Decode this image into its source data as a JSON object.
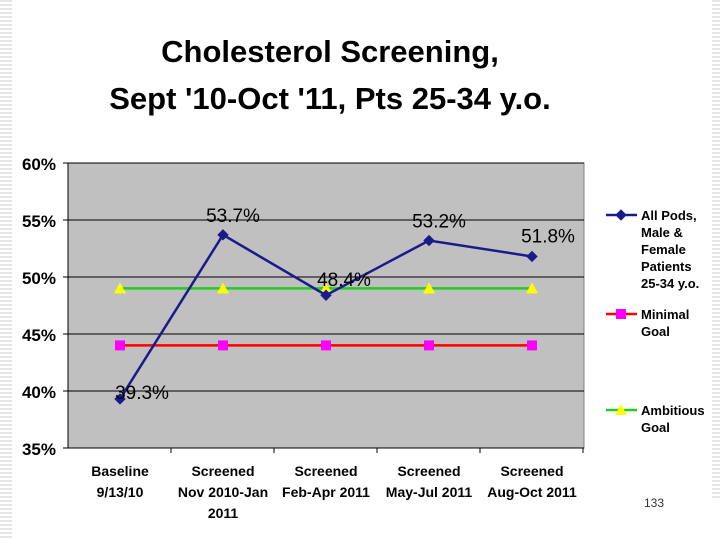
{
  "chart_data": {
    "type": "line",
    "title_line1": "Cholesterol Screening,",
    "title_line2": "Sept '10-Oct '11, Pts 25-34 y.o.",
    "categories": [
      [
        "Baseline",
        "9/13/10"
      ],
      [
        "Screened",
        "Nov 2010-Jan",
        "2011"
      ],
      [
        "Screened",
        "Feb-Apr 2011"
      ],
      [
        "Screened",
        "May-Jul 2011"
      ],
      [
        "Screened",
        "Aug-Oct 2011"
      ]
    ],
    "ylim": [
      35,
      60
    ],
    "yticks": [
      35,
      40,
      45,
      50,
      55,
      60
    ],
    "ytick_labels": [
      "35%",
      "40%",
      "45%",
      "50%",
      "55%",
      "60%"
    ],
    "series": [
      {
        "name": "All Pods, Male & Female Patients 25-34 y.o.",
        "legend_lines": [
          "All Pods,",
          "Male &",
          "Female",
          "Patients",
          "25-34 y.o."
        ],
        "values": [
          39.3,
          53.7,
          48.4,
          53.2,
          51.8
        ],
        "labels": [
          "39.3%",
          "53.7%",
          "48.4%",
          "53.2%",
          "51.8%"
        ],
        "color": "#1a1a8c",
        "marker": "diamond"
      },
      {
        "name": "Minimal Goal",
        "legend_lines": [
          "Minimal",
          "Goal"
        ],
        "values": [
          44,
          44,
          44,
          44,
          44
        ],
        "color": "#ff0000",
        "marker_color": "#ff00ff",
        "marker": "square"
      },
      {
        "name": "Ambitious Goal",
        "legend_lines": [
          "Ambitious",
          "Goal"
        ],
        "values": [
          49,
          49,
          49,
          49,
          49
        ],
        "color": "#22cc22",
        "marker_color": "#ffff00",
        "marker": "triangle"
      }
    ],
    "plot_bg": "#c0c0c0",
    "gridlines": true,
    "legend": "right"
  },
  "page_number": "133"
}
